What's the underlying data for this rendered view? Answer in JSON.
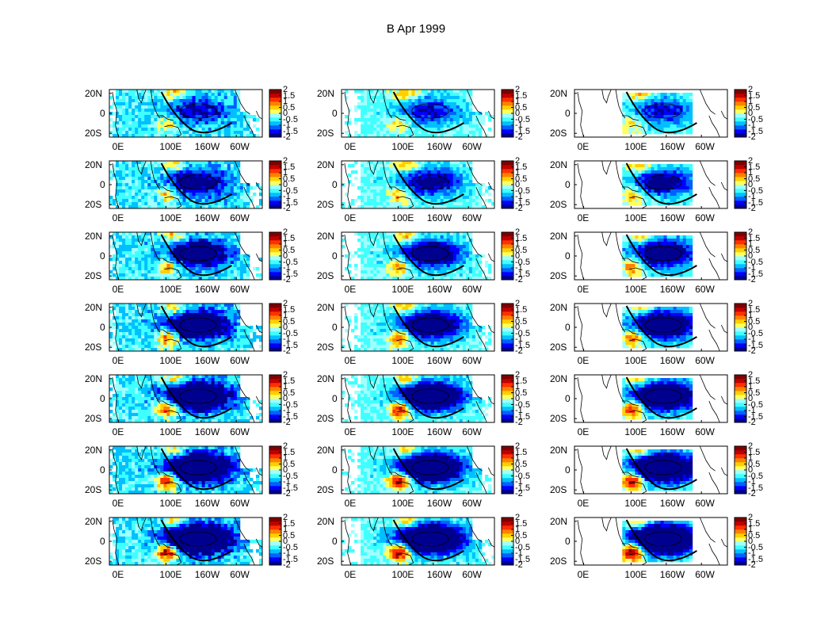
{
  "title": "B Apr 1999",
  "layout": {
    "rows": 7,
    "cols": 3
  },
  "map_axes": {
    "x_ticks": [
      "0E",
      "100E",
      "160W",
      "60W"
    ],
    "y_ticks": [
      "20N",
      "0",
      "20S"
    ]
  },
  "colorbar": {
    "ticks": [
      "2",
      "1.5",
      "1",
      "0.5",
      "0",
      "-0.5",
      "-1",
      "-1.5",
      "-2"
    ],
    "range": [
      -2,
      2
    ],
    "colormap": [
      "#00008f",
      "#0000ff",
      "#0060ff",
      "#00c0ff",
      "#40ffff",
      "#a0ffff",
      "#ffff60",
      "#ffd000",
      "#ff8000",
      "#ff3000",
      "#c00000",
      "#800000"
    ]
  },
  "chart_data": {
    "type": "heatmap",
    "title": "B Apr 1999",
    "x_ticks": [
      "0E",
      "100E",
      "160W",
      "60W"
    ],
    "y_ticks": [
      "20N",
      "0",
      "20S"
    ],
    "value_range": [
      -2,
      2
    ],
    "panels_rows": 7,
    "panels_cols": 3,
    "column_patterns": [
      "full-domain anomalies with strong central Pacific cold tongue",
      "masked anomalies with broad central Pacific cold region",
      "restricted domain (tropical Pacific box) cold anomaly"
    ]
  }
}
